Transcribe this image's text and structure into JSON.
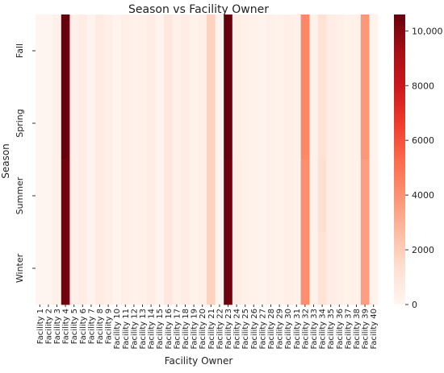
{
  "chart_data": {
    "type": "heatmap",
    "title": "Season vs Facility Owner",
    "xlabel": "Facility Owner",
    "ylabel": "Season",
    "seasons": [
      "Fall",
      "Spring",
      "Summer",
      "Winter"
    ],
    "x": [
      "Facility 1",
      "Facility 2",
      "Facility 3",
      "Facility 4",
      "Facility 5",
      "Facility 6",
      "Facility 7",
      "Facility 8",
      "Facility 9",
      "Facility 10",
      "Facility 11",
      "Facility 12",
      "Facility 13",
      "Facility 14",
      "Facility 15",
      "Facility 16",
      "Facility 17",
      "Facility 18",
      "Facility 19",
      "Facility 20",
      "Facility 21",
      "Facility 22",
      "Facility 23",
      "Facility 24",
      "Facility 25",
      "Facility 26",
      "Facility 27",
      "Facility 28",
      "Facility 29",
      "Facility 30",
      "Facility 31",
      "Facility 32",
      "Facility 33",
      "Facility 34",
      "Facility 35",
      "Facility 36",
      "Facility 37",
      "Facility 38",
      "Facility 39",
      "Facility 40"
    ],
    "colorbar": {
      "min": 0,
      "max": 10600,
      "ticks": [
        0,
        2000,
        4000,
        6000,
        8000,
        10000
      ],
      "tick_labels": [
        "0",
        "2000",
        "4000",
        "6000",
        "8000",
        "10,000"
      ],
      "colormap": "Reds"
    },
    "values_note": "per season, per facility",
    "values": [
      [
        10,
        20,
        300,
        10600,
        300,
        500,
        150,
        600,
        400,
        50,
        400,
        200,
        300,
        500,
        150,
        800,
        300,
        500,
        200,
        400,
        1800,
        100,
        10600,
        500,
        300,
        200,
        100,
        300,
        200,
        400,
        300,
        4300,
        200,
        1200,
        500,
        400,
        200,
        300,
        3800,
        100
      ],
      [
        10,
        20,
        300,
        10600,
        300,
        500,
        150,
        600,
        400,
        50,
        400,
        200,
        300,
        500,
        150,
        800,
        300,
        500,
        200,
        400,
        1800,
        100,
        10600,
        500,
        300,
        200,
        100,
        300,
        200,
        400,
        300,
        4300,
        200,
        1200,
        500,
        400,
        200,
        300,
        3800,
        100
      ],
      [
        10,
        20,
        300,
        10400,
        300,
        500,
        150,
        600,
        400,
        50,
        400,
        200,
        300,
        500,
        150,
        800,
        300,
        500,
        200,
        400,
        1800,
        100,
        10400,
        500,
        300,
        200,
        100,
        300,
        200,
        400,
        300,
        4100,
        200,
        1300,
        500,
        400,
        200,
        300,
        3600,
        100
      ],
      [
        10,
        20,
        300,
        10400,
        300,
        500,
        150,
        600,
        400,
        50,
        400,
        200,
        300,
        500,
        150,
        800,
        300,
        500,
        200,
        400,
        1800,
        100,
        10400,
        500,
        300,
        200,
        100,
        300,
        200,
        400,
        300,
        4100,
        200,
        1200,
        500,
        400,
        200,
        300,
        3600,
        100
      ]
    ]
  }
}
